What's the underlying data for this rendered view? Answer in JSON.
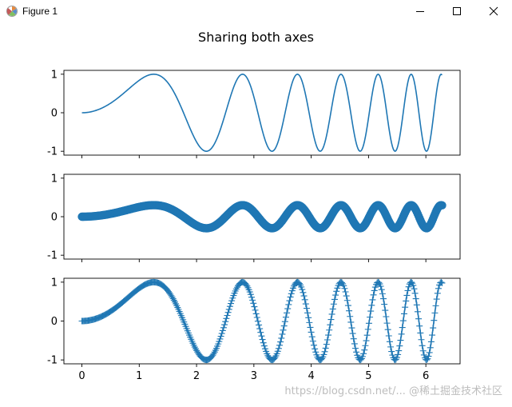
{
  "window": {
    "title": "Figure 1",
    "icon": "matplotlib-figure-icon",
    "controls": [
      "minimize-icon",
      "maximize-icon",
      "close-icon"
    ]
  },
  "figure": {
    "suptitle": "Sharing both axes",
    "watermark": "https://blog.csdn.net/... @稀土掘金技术社区",
    "line_color": "#1f77b4"
  },
  "chart_data": [
    {
      "type": "line",
      "title": "",
      "xlabel": "",
      "ylabel": "",
      "function": "y = sin(x^2)",
      "marker": "none",
      "x_range": [
        0,
        6.283
      ],
      "xlim": [
        -0.314,
        6.597
      ],
      "ylim": [
        -1.1,
        1.1
      ],
      "yticks": [
        -1,
        0,
        1
      ],
      "xticks": [
        0,
        1,
        2,
        3,
        4,
        5,
        6
      ],
      "xtick_labels_visible": false,
      "grid": false,
      "sample_points": {
        "x": [
          0,
          0.5,
          1.0,
          1.253,
          1.5,
          1.772,
          2.0,
          2.171,
          2.507,
          2.8,
          3.0,
          3.5,
          4.0,
          4.5,
          5.0,
          5.5,
          6.0,
          6.283
        ],
        "y": [
          0,
          0.247,
          0.841,
          1.0,
          0.778,
          0.0,
          -0.757,
          -1.0,
          0.02,
          0.999,
          0.412,
          -0.311,
          -0.288,
          0.973,
          -0.132,
          -0.965,
          -0.992,
          0.961
        ]
      }
    },
    {
      "type": "scatter",
      "title": "",
      "xlabel": "",
      "ylabel": "",
      "function": "y = 0.3 * sin(x^2)",
      "marker": "circle",
      "x_range": [
        0,
        6.283
      ],
      "xlim": [
        -0.314,
        6.597
      ],
      "ylim": [
        -1.1,
        1.1
      ],
      "yticks": [
        -1,
        0,
        1
      ],
      "xticks": [
        0,
        1,
        2,
        3,
        4,
        5,
        6
      ],
      "xtick_labels_visible": false,
      "grid": false,
      "sample_points": {
        "x": [
          0,
          0.5,
          1.0,
          1.253,
          1.5,
          1.772,
          2.0,
          2.171,
          2.507,
          2.8,
          3.0,
          3.5,
          4.0,
          4.5,
          5.0,
          5.5,
          6.0,
          6.283
        ],
        "y": [
          0,
          0.074,
          0.252,
          0.3,
          0.233,
          0.0,
          -0.227,
          -0.3,
          0.006,
          0.3,
          0.124,
          -0.093,
          -0.086,
          0.292,
          -0.04,
          -0.29,
          -0.298,
          0.288
        ]
      }
    },
    {
      "type": "line",
      "title": "",
      "xlabel": "",
      "ylabel": "",
      "function": "y = sin(x^2)",
      "marker": "plus",
      "x_range": [
        0,
        6.283
      ],
      "xlim": [
        -0.314,
        6.597
      ],
      "ylim": [
        -1.1,
        1.1
      ],
      "yticks": [
        -1,
        0,
        1
      ],
      "xticks": [
        0,
        1,
        2,
        3,
        4,
        5,
        6
      ],
      "xtick_labels_visible": true,
      "grid": false,
      "sample_points": {
        "x": [
          0,
          0.5,
          1.0,
          1.253,
          1.5,
          1.772,
          2.0,
          2.171,
          2.507,
          2.8,
          3.0,
          3.5,
          4.0,
          4.5,
          5.0,
          5.5,
          6.0,
          6.283
        ],
        "y": [
          0,
          0.247,
          0.841,
          1.0,
          0.778,
          0.0,
          -0.757,
          -1.0,
          0.02,
          0.999,
          0.412,
          -0.311,
          -0.288,
          0.973,
          -0.132,
          -0.965,
          -0.992,
          0.961
        ]
      }
    }
  ]
}
